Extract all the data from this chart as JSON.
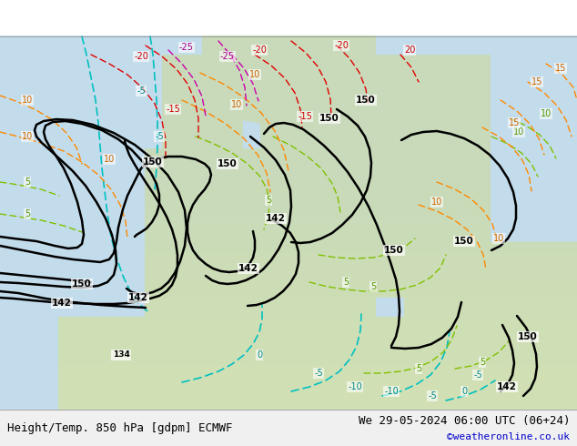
{
  "title_left": "Height/Temp. 850 hPa [gdpm] ECMWF",
  "title_right": "We 29-05-2024 06:00 UTC (06+24)",
  "credit": "©weatheronline.co.uk",
  "figsize": [
    6.34,
    4.9
  ],
  "dpi": 100,
  "bg_color": "#d0e8f0",
  "land_color_north": "#c8dcc8",
  "land_color_south": "#d8e8c8",
  "bottom_bar_color": "#e8e8e8",
  "text_color_left": "#000000",
  "text_color_right": "#000000",
  "credit_color": "#0000cc",
  "font_size_labels": 8,
  "font_size_title": 9,
  "font_size_credit": 8
}
